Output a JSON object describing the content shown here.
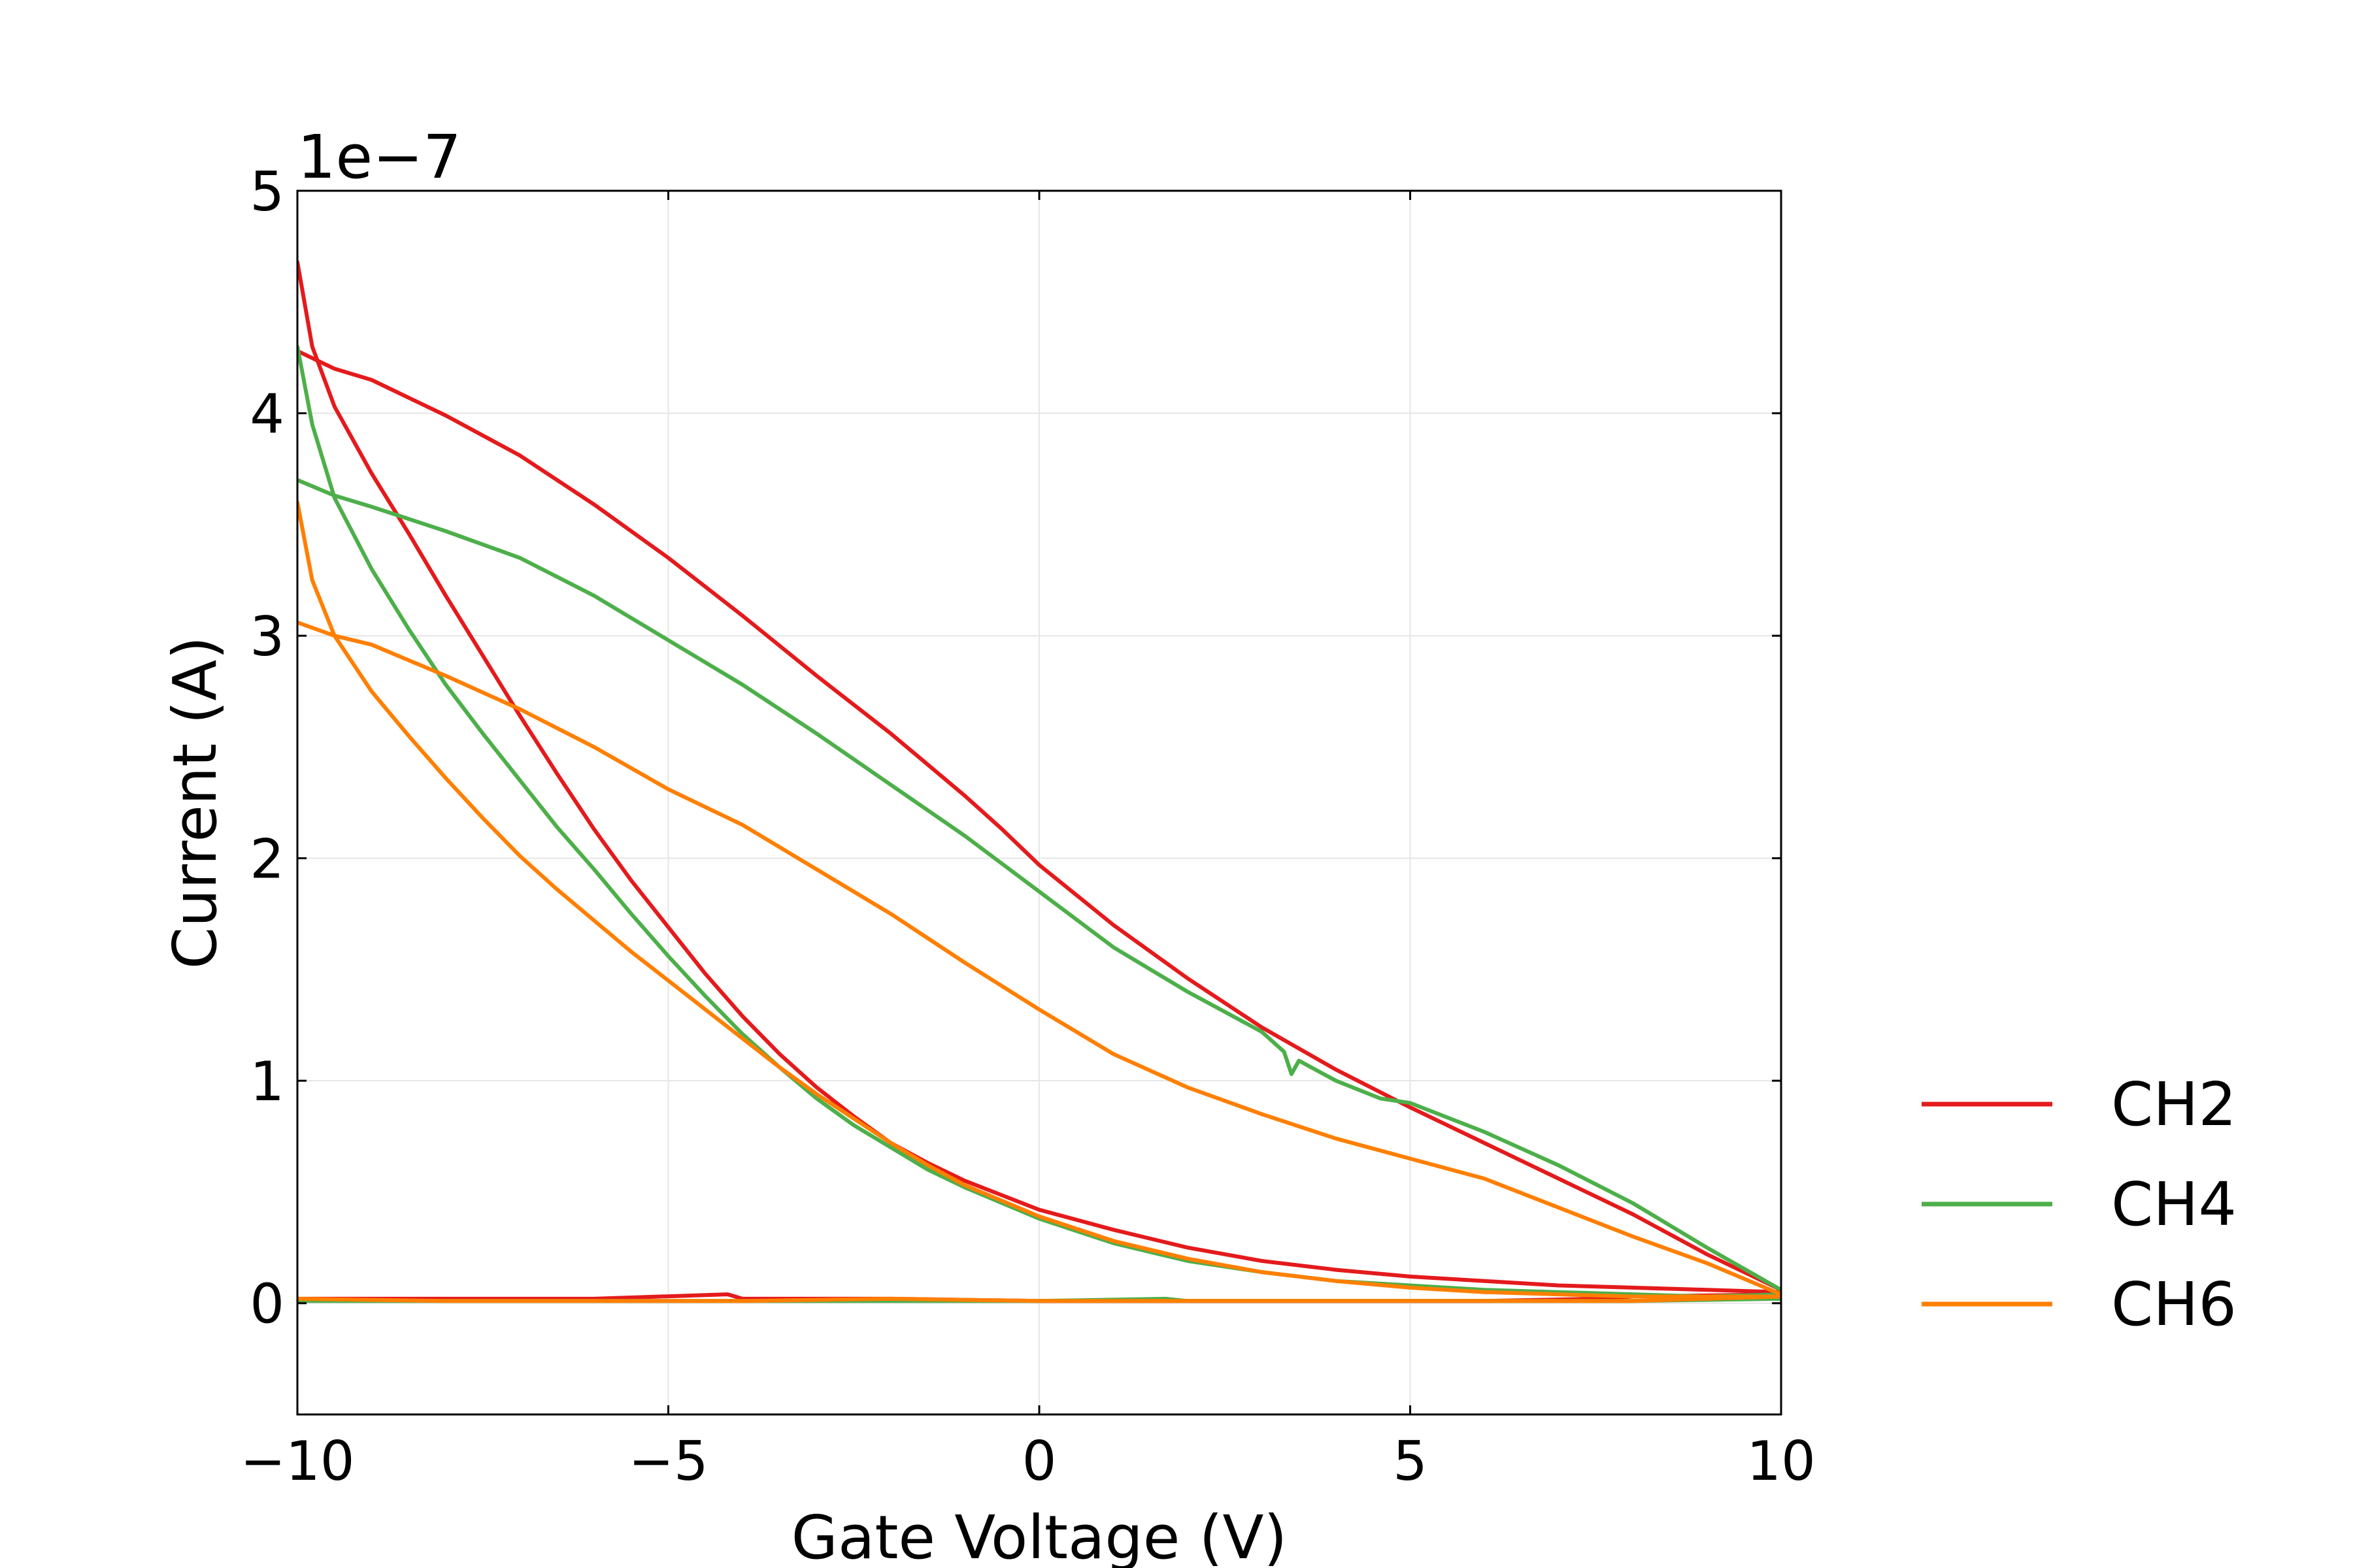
{
  "chart_data": {
    "type": "line",
    "xlabel": "Gate Voltage (V)",
    "ylabel": "Current (A)",
    "y_offset_label": "1e−7",
    "y_multiplier": 1e-07,
    "xlim": [
      -10,
      10
    ],
    "ylim": [
      -0.5,
      5
    ],
    "x_ticks": [
      -10,
      -5,
      0,
      5,
      10
    ],
    "x_tick_labels": [
      "−10",
      "−5",
      "0",
      "5",
      "10"
    ],
    "y_ticks": [
      0,
      1,
      2,
      3,
      4,
      5
    ],
    "y_tick_labels": [
      "0",
      "1",
      "2",
      "3",
      "4",
      "5"
    ],
    "grid": true,
    "legend_position": "outside-right",
    "series": [
      {
        "name": "CH2",
        "color": "#e41a1c",
        "segments": [
          [
            [
              -10,
              0.02
            ],
            [
              -8,
              0.02
            ],
            [
              -6,
              0.02
            ],
            [
              -4.2,
              0.04
            ],
            [
              -4,
              0.02
            ],
            [
              -2,
              0.02
            ],
            [
              0,
              0.01
            ],
            [
              2,
              0.01
            ],
            [
              4,
              0.01
            ],
            [
              6,
              0.01
            ],
            [
              7.5,
              0.02
            ],
            [
              8,
              0.03
            ],
            [
              10,
              0.04
            ]
          ],
          [
            [
              -10,
              4.68
            ],
            [
              -9.8,
              4.3
            ],
            [
              -9.5,
              4.03
            ],
            [
              -9,
              3.73
            ],
            [
              -8.5,
              3.46
            ],
            [
              -8,
              3.18
            ],
            [
              -7.5,
              2.91
            ],
            [
              -7,
              2.64
            ],
            [
              -6.5,
              2.38
            ],
            [
              -6,
              2.13
            ],
            [
              -5.5,
              1.9
            ],
            [
              -5,
              1.69
            ],
            [
              -4.5,
              1.48
            ],
            [
              -4,
              1.29
            ],
            [
              -3.5,
              1.12
            ],
            [
              -3,
              0.97
            ],
            [
              -2.5,
              0.84
            ],
            [
              -2,
              0.72
            ],
            [
              -1.5,
              0.63
            ],
            [
              -1,
              0.55
            ],
            [
              0,
              0.42
            ],
            [
              1,
              0.33
            ],
            [
              2,
              0.25
            ],
            [
              3,
              0.19
            ],
            [
              4,
              0.15
            ],
            [
              5,
              0.12
            ],
            [
              6,
              0.1
            ],
            [
              7,
              0.08
            ],
            [
              8,
              0.07
            ],
            [
              9,
              0.06
            ],
            [
              10,
              0.05
            ]
          ],
          [
            [
              10,
              0.06
            ],
            [
              9,
              0.22
            ],
            [
              8,
              0.4
            ],
            [
              7,
              0.56
            ],
            [
              6,
              0.72
            ],
            [
              5,
              0.88
            ],
            [
              4,
              1.05
            ],
            [
              3,
              1.24
            ],
            [
              2,
              1.46
            ],
            [
              1,
              1.7
            ],
            [
              0,
              1.97
            ],
            [
              -0.5,
              2.13
            ],
            [
              -1,
              2.28
            ],
            [
              -2,
              2.56
            ],
            [
              -3,
              2.82
            ],
            [
              -4,
              3.09
            ],
            [
              -5,
              3.35
            ],
            [
              -6,
              3.59
            ],
            [
              -7,
              3.81
            ],
            [
              -8,
              3.99
            ],
            [
              -9,
              4.15
            ],
            [
              -9.5,
              4.2
            ],
            [
              -10,
              4.28
            ]
          ]
        ]
      },
      {
        "name": "CH4",
        "color": "#4daf4a",
        "segments": [
          [
            [
              -10,
              0.01
            ],
            [
              -8,
              0.01
            ],
            [
              -6,
              0.01
            ],
            [
              -4,
              0.01
            ],
            [
              -2,
              0.01
            ],
            [
              0,
              0.01
            ],
            [
              1.7,
              0.02
            ],
            [
              2,
              0.01
            ],
            [
              4,
              0.01
            ],
            [
              6,
              0.01
            ],
            [
              8,
              0.01
            ],
            [
              10,
              0.02
            ]
          ],
          [
            [
              -10,
              4.3
            ],
            [
              -9.8,
              3.95
            ],
            [
              -9.5,
              3.62
            ],
            [
              -9,
              3.3
            ],
            [
              -8.5,
              3.03
            ],
            [
              -8,
              2.78
            ],
            [
              -7.5,
              2.56
            ],
            [
              -7,
              2.35
            ],
            [
              -6.5,
              2.14
            ],
            [
              -6,
              1.95
            ],
            [
              -5.5,
              1.75
            ],
            [
              -5,
              1.56
            ],
            [
              -4.5,
              1.38
            ],
            [
              -4,
              1.21
            ],
            [
              -3.5,
              1.06
            ],
            [
              -3,
              0.92
            ],
            [
              -2.5,
              0.8
            ],
            [
              -2,
              0.7
            ],
            [
              -1.5,
              0.6
            ],
            [
              -1,
              0.52
            ],
            [
              0,
              0.38
            ],
            [
              1,
              0.27
            ],
            [
              2,
              0.19
            ],
            [
              3,
              0.14
            ],
            [
              4,
              0.1
            ],
            [
              5,
              0.08
            ],
            [
              6,
              0.06
            ],
            [
              7,
              0.05
            ],
            [
              8,
              0.04
            ],
            [
              9,
              0.03
            ],
            [
              10,
              0.04
            ]
          ],
          [
            [
              10,
              0.06
            ],
            [
              9,
              0.25
            ],
            [
              8,
              0.45
            ],
            [
              7,
              0.62
            ],
            [
              6,
              0.77
            ],
            [
              5,
              0.9
            ],
            [
              4.6,
              0.92
            ],
            [
              4,
              1.0
            ],
            [
              3.5,
              1.09
            ],
            [
              3.4,
              1.03
            ],
            [
              3.3,
              1.13
            ],
            [
              3,
              1.22
            ],
            [
              2,
              1.4
            ],
            [
              1,
              1.6
            ],
            [
              0,
              1.85
            ],
            [
              -1,
              2.1
            ],
            [
              -2,
              2.33
            ],
            [
              -3,
              2.56
            ],
            [
              -4,
              2.78
            ],
            [
              -5,
              2.98
            ],
            [
              -6,
              3.18
            ],
            [
              -7,
              3.35
            ],
            [
              -8,
              3.47
            ],
            [
              -9,
              3.58
            ],
            [
              -9.5,
              3.63
            ],
            [
              -10,
              3.7
            ]
          ]
        ]
      },
      {
        "name": "CH6",
        "color": "#ff7f00",
        "segments": [
          [
            [
              -10,
              0.02
            ],
            [
              -8,
              0.01
            ],
            [
              -6,
              0.01
            ],
            [
              -4,
              0.01
            ],
            [
              -2,
              0.02
            ],
            [
              0,
              0.01
            ],
            [
              2,
              0.01
            ],
            [
              4,
              0.01
            ],
            [
              6,
              0.01
            ],
            [
              8,
              0.01
            ],
            [
              10,
              0.03
            ]
          ],
          [
            [
              -10,
              3.6
            ],
            [
              -9.8,
              3.25
            ],
            [
              -9.5,
              3.0
            ],
            [
              -9,
              2.75
            ],
            [
              -8.5,
              2.55
            ],
            [
              -8,
              2.36
            ],
            [
              -7.5,
              2.18
            ],
            [
              -7,
              2.01
            ],
            [
              -6.5,
              1.86
            ],
            [
              -6,
              1.72
            ],
            [
              -5.5,
              1.58
            ],
            [
              -5,
              1.45
            ],
            [
              -4.5,
              1.32
            ],
            [
              -4,
              1.19
            ],
            [
              -3.5,
              1.06
            ],
            [
              -3,
              0.94
            ],
            [
              -2.5,
              0.83
            ],
            [
              -2,
              0.72
            ],
            [
              -1.5,
              0.62
            ],
            [
              -1,
              0.53
            ],
            [
              0,
              0.39
            ],
            [
              1,
              0.28
            ],
            [
              2,
              0.2
            ],
            [
              3,
              0.14
            ],
            [
              4,
              0.1
            ],
            [
              5,
              0.07
            ],
            [
              6,
              0.05
            ],
            [
              7,
              0.04
            ],
            [
              8,
              0.03
            ],
            [
              9,
              0.03
            ],
            [
              10,
              0.03
            ]
          ],
          [
            [
              10,
              0.04
            ],
            [
              9,
              0.18
            ],
            [
              8,
              0.3
            ],
            [
              7,
              0.43
            ],
            [
              6,
              0.56
            ],
            [
              5,
              0.65
            ],
            [
              4,
              0.74
            ],
            [
              3,
              0.85
            ],
            [
              2,
              0.97
            ],
            [
              1,
              1.12
            ],
            [
              0,
              1.32
            ],
            [
              -1,
              1.53
            ],
            [
              -2,
              1.75
            ],
            [
              -3,
              1.95
            ],
            [
              -4,
              2.15
            ],
            [
              -5,
              2.31
            ],
            [
              -6,
              2.5
            ],
            [
              -7,
              2.67
            ],
            [
              -8,
              2.82
            ],
            [
              -9,
              2.96
            ],
            [
              -9.5,
              3.0
            ],
            [
              -10,
              3.06
            ]
          ]
        ]
      }
    ]
  }
}
